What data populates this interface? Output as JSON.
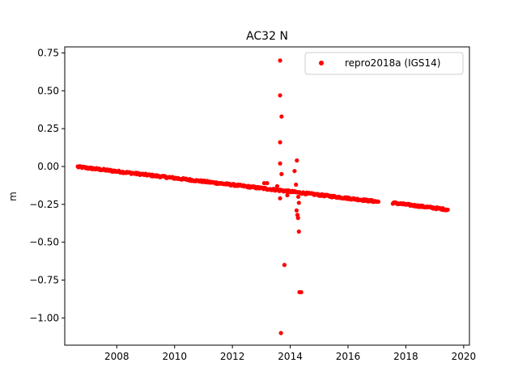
{
  "chart_data": {
    "type": "scatter",
    "title": "AC32 N",
    "xlabel": "",
    "ylabel": "m",
    "xlim": [
      2006.2,
      2020.2
    ],
    "ylim": [
      -1.18,
      0.79
    ],
    "xticks": [
      2008,
      2010,
      2012,
      2014,
      2016,
      2018,
      2020
    ],
    "xtick_labels": [
      "2008",
      "2010",
      "2012",
      "2014",
      "2016",
      "2018",
      "2020"
    ],
    "yticks": [
      0.75,
      0.5,
      0.25,
      0.0,
      -0.25,
      -0.5,
      -0.75,
      -1.0
    ],
    "ytick_labels": [
      "0.75",
      "0.50",
      "0.25",
      "0.00",
      "−0.25",
      "−0.50",
      "−0.75",
      "−1.00"
    ],
    "grid": false,
    "legend_position": "top-right",
    "series": [
      {
        "name": "repro2018a (IGS14)",
        "color": "#ff0000",
        "marker": "circle",
        "trend_segments": [
          {
            "x_start": 2006.65,
            "x_end": 2017.05,
            "y_start": -0.002,
            "y_end": -0.233,
            "step": 0.025,
            "noise": 0.006
          },
          {
            "x_start": 2017.55,
            "x_end": 2019.45,
            "y_start": -0.24,
            "y_end": -0.285,
            "step": 0.025,
            "noise": 0.006
          }
        ],
        "points": [
          {
            "x": 2013.65,
            "y": 0.7
          },
          {
            "x": 2013.65,
            "y": 0.47
          },
          {
            "x": 2013.7,
            "y": 0.33
          },
          {
            "x": 2013.65,
            "y": 0.16
          },
          {
            "x": 2013.65,
            "y": 0.02
          },
          {
            "x": 2013.7,
            "y": -0.05
          },
          {
            "x": 2013.65,
            "y": -0.21
          },
          {
            "x": 2013.8,
            "y": -0.65
          },
          {
            "x": 2013.68,
            "y": -1.1
          },
          {
            "x": 2014.23,
            "y": 0.04
          },
          {
            "x": 2014.15,
            "y": -0.03
          },
          {
            "x": 2014.2,
            "y": -0.12
          },
          {
            "x": 2014.28,
            "y": -0.2
          },
          {
            "x": 2014.3,
            "y": -0.24
          },
          {
            "x": 2014.22,
            "y": -0.29
          },
          {
            "x": 2014.25,
            "y": -0.32
          },
          {
            "x": 2014.27,
            "y": -0.34
          },
          {
            "x": 2014.3,
            "y": -0.43
          },
          {
            "x": 2014.32,
            "y": -0.83
          },
          {
            "x": 2014.38,
            "y": -0.83
          },
          {
            "x": 2013.55,
            "y": -0.13
          },
          {
            "x": 2013.9,
            "y": -0.19
          },
          {
            "x": 2013.1,
            "y": -0.11
          },
          {
            "x": 2013.2,
            "y": -0.11
          }
        ]
      }
    ]
  }
}
